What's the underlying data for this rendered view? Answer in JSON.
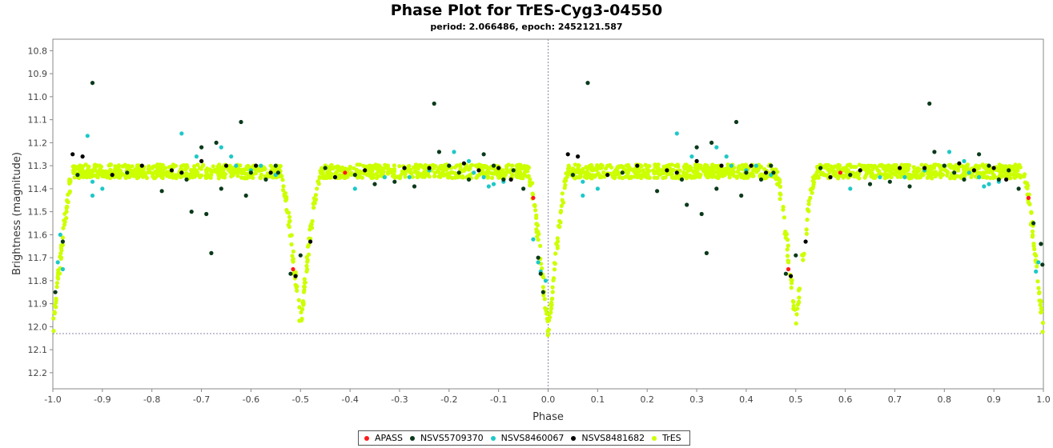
{
  "chart_data": {
    "type": "scatter",
    "title": "Phase Plot for TrES-Cyg3-04550",
    "subtitle": "period: 2.066486, epoch: 2452121.587",
    "xlabel": "Phase",
    "ylabel": "Brightness (magnitude)",
    "xlim": [
      -1.0,
      1.0
    ],
    "ylim": [
      10.75,
      12.27
    ],
    "y_inverted": true,
    "xticks": [
      "-1.0",
      "-0.9",
      "-0.8",
      "-0.7",
      "-0.6",
      "-0.5",
      "-0.4",
      "-0.3",
      "-0.2",
      "-0.1",
      "0.0",
      "0.1",
      "0.2",
      "0.3",
      "0.4",
      "0.5",
      "0.6",
      "0.7",
      "0.8",
      "0.9",
      "1.0"
    ],
    "yticks": [
      "10.8",
      "10.9",
      "11.0",
      "11.1",
      "11.2",
      "11.3",
      "11.4",
      "11.5",
      "11.6",
      "11.7",
      "11.8",
      "11.9",
      "12.0",
      "12.1",
      "12.2"
    ],
    "crosshair": {
      "x": 0.0,
      "y": 12.03
    },
    "legend_position": "bottom",
    "series": [
      {
        "name": "APASS",
        "color": "#ff1a1a",
        "points": [
          [
            -0.515,
            11.75
          ],
          [
            -0.41,
            11.33
          ],
          [
            -0.03,
            11.44
          ],
          [
            0.485,
            11.75
          ],
          [
            0.59,
            11.33
          ],
          [
            0.97,
            11.44
          ]
        ]
      },
      {
        "name": "NSVS5709370",
        "color": "#0a3a1a",
        "points": [
          [
            -0.92,
            10.94
          ],
          [
            -0.23,
            11.03
          ],
          [
            -0.62,
            11.11
          ],
          [
            -0.7,
            11.22
          ],
          [
            -0.67,
            11.2
          ],
          [
            -0.55,
            11.3
          ],
          [
            -0.95,
            11.34
          ],
          [
            -0.85,
            11.33
          ],
          [
            -0.78,
            11.41
          ],
          [
            -0.73,
            11.36
          ],
          [
            -0.72,
            11.5
          ],
          [
            -0.69,
            11.51
          ],
          [
            -0.68,
            11.68
          ],
          [
            -0.66,
            11.4
          ],
          [
            -0.61,
            11.43
          ],
          [
            -0.6,
            11.33
          ],
          [
            -0.57,
            11.36
          ],
          [
            -0.545,
            11.33
          ],
          [
            -0.5,
            11.69
          ],
          [
            -0.52,
            11.77
          ],
          [
            -0.98,
            11.63
          ],
          [
            -0.995,
            11.85
          ],
          [
            -0.45,
            11.31
          ],
          [
            -0.39,
            11.34
          ],
          [
            -0.35,
            11.38
          ],
          [
            -0.31,
            11.37
          ],
          [
            -0.27,
            11.39
          ],
          [
            -0.22,
            11.24
          ],
          [
            -0.2,
            11.3
          ],
          [
            -0.18,
            11.33
          ],
          [
            -0.16,
            11.36
          ],
          [
            -0.13,
            11.25
          ],
          [
            -0.11,
            11.3
          ],
          [
            -0.09,
            11.36
          ],
          [
            -0.07,
            11.32
          ],
          [
            -0.05,
            11.4
          ],
          [
            -0.02,
            11.7
          ],
          [
            -0.015,
            11.77
          ],
          [
            -0.01,
            11.85
          ],
          [
            0.08,
            10.94
          ],
          [
            0.77,
            11.03
          ],
          [
            0.38,
            11.11
          ],
          [
            0.3,
            11.22
          ],
          [
            0.33,
            11.2
          ],
          [
            0.45,
            11.3
          ],
          [
            0.05,
            11.34
          ],
          [
            0.15,
            11.33
          ],
          [
            0.22,
            11.41
          ],
          [
            0.27,
            11.36
          ],
          [
            0.28,
            11.47
          ],
          [
            0.31,
            11.51
          ],
          [
            0.32,
            11.68
          ],
          [
            0.34,
            11.4
          ],
          [
            0.39,
            11.43
          ],
          [
            0.4,
            11.33
          ],
          [
            0.43,
            11.36
          ],
          [
            0.455,
            11.33
          ],
          [
            0.5,
            11.69
          ],
          [
            0.48,
            11.77
          ],
          [
            0.55,
            11.31
          ],
          [
            0.61,
            11.34
          ],
          [
            0.65,
            11.38
          ],
          [
            0.69,
            11.37
          ],
          [
            0.73,
            11.39
          ],
          [
            0.78,
            11.24
          ],
          [
            0.8,
            11.3
          ],
          [
            0.82,
            11.33
          ],
          [
            0.84,
            11.36
          ],
          [
            0.87,
            11.25
          ],
          [
            0.89,
            11.3
          ],
          [
            0.91,
            11.36
          ],
          [
            0.93,
            11.32
          ],
          [
            0.95,
            11.4
          ],
          [
            0.98,
            11.55
          ],
          [
            0.995,
            11.64
          ],
          [
            0.998,
            11.73
          ]
        ]
      },
      {
        "name": "NSVS8460067",
        "color": "#1ec8c8",
        "points": [
          [
            -0.93,
            11.17
          ],
          [
            -0.92,
            11.37
          ],
          [
            -0.92,
            11.43
          ],
          [
            -0.9,
            11.4
          ],
          [
            -0.74,
            11.16
          ],
          [
            -0.71,
            11.26
          ],
          [
            -0.66,
            11.22
          ],
          [
            -0.64,
            11.26
          ],
          [
            -0.63,
            11.3
          ],
          [
            -0.6,
            11.32
          ],
          [
            -0.58,
            11.3
          ],
          [
            -0.55,
            11.34
          ],
          [
            -0.985,
            11.6
          ],
          [
            -0.99,
            11.72
          ],
          [
            -0.98,
            11.75
          ],
          [
            -0.39,
            11.4
          ],
          [
            -0.33,
            11.35
          ],
          [
            -0.28,
            11.35
          ],
          [
            -0.24,
            11.32
          ],
          [
            -0.2,
            11.3
          ],
          [
            -0.19,
            11.24
          ],
          [
            -0.16,
            11.28
          ],
          [
            -0.15,
            11.33
          ],
          [
            -0.13,
            11.35
          ],
          [
            -0.12,
            11.39
          ],
          [
            -0.11,
            11.38
          ],
          [
            -0.09,
            11.37
          ],
          [
            -0.03,
            11.62
          ],
          [
            -0.02,
            11.72
          ],
          [
            -0.015,
            11.76
          ],
          [
            -0.005,
            11.8
          ],
          [
            0.07,
            11.37
          ],
          [
            0.07,
            11.43
          ],
          [
            0.1,
            11.4
          ],
          [
            0.26,
            11.16
          ],
          [
            0.29,
            11.26
          ],
          [
            0.34,
            11.22
          ],
          [
            0.36,
            11.26
          ],
          [
            0.37,
            11.3
          ],
          [
            0.4,
            11.32
          ],
          [
            0.42,
            11.3
          ],
          [
            0.45,
            11.34
          ],
          [
            0.61,
            11.4
          ],
          [
            0.67,
            11.35
          ],
          [
            0.72,
            11.35
          ],
          [
            0.76,
            11.32
          ],
          [
            0.8,
            11.3
          ],
          [
            0.81,
            11.24
          ],
          [
            0.84,
            11.28
          ],
          [
            0.85,
            11.33
          ],
          [
            0.87,
            11.35
          ],
          [
            0.88,
            11.39
          ],
          [
            0.89,
            11.38
          ],
          [
            0.91,
            11.37
          ],
          [
            0.99,
            11.72
          ],
          [
            0.985,
            11.76
          ]
        ]
      },
      {
        "name": "NSVS8481682",
        "color": "#000000",
        "points": [
          [
            -0.96,
            11.25
          ],
          [
            -0.94,
            11.26
          ],
          [
            -0.88,
            11.34
          ],
          [
            -0.82,
            11.3
          ],
          [
            -0.76,
            11.32
          ],
          [
            -0.74,
            11.33
          ],
          [
            -0.7,
            11.28
          ],
          [
            -0.65,
            11.3
          ],
          [
            -0.59,
            11.3
          ],
          [
            -0.56,
            11.33
          ],
          [
            -0.51,
            11.78
          ],
          [
            -0.48,
            11.63
          ],
          [
            -0.43,
            11.35
          ],
          [
            -0.37,
            11.32
          ],
          [
            -0.29,
            11.31
          ],
          [
            -0.24,
            11.31
          ],
          [
            -0.17,
            11.29
          ],
          [
            -0.14,
            11.32
          ],
          [
            -0.1,
            11.31
          ],
          [
            -0.075,
            11.36
          ],
          [
            0.04,
            11.25
          ],
          [
            0.06,
            11.26
          ],
          [
            0.12,
            11.34
          ],
          [
            0.18,
            11.3
          ],
          [
            0.24,
            11.32
          ],
          [
            0.26,
            11.33
          ],
          [
            0.3,
            11.28
          ],
          [
            0.35,
            11.3
          ],
          [
            0.41,
            11.3
          ],
          [
            0.44,
            11.33
          ],
          [
            0.49,
            11.78
          ],
          [
            0.52,
            11.63
          ],
          [
            0.57,
            11.35
          ],
          [
            0.63,
            11.32
          ],
          [
            0.71,
            11.31
          ],
          [
            0.76,
            11.31
          ],
          [
            0.83,
            11.29
          ],
          [
            0.86,
            11.32
          ],
          [
            0.9,
            11.31
          ],
          [
            0.925,
            11.36
          ]
        ]
      },
      {
        "name": "TrES",
        "color": "#ccff00",
        "shape": {
          "baseline": 11.325,
          "spread": 0.03,
          "dips": [
            {
              "center": -1.0,
              "depth": 12.03,
              "halfwidth": 0.04
            },
            {
              "center": -0.5,
              "depth": 11.99,
              "halfwidth": 0.04
            },
            {
              "center": 0.0,
              "depth": 12.03,
              "halfwidth": 0.04
            },
            {
              "center": 0.5,
              "depth": 11.99,
              "halfwidth": 0.04
            },
            {
              "center": 1.0,
              "depth": 12.03,
              "halfwidth": 0.04
            }
          ]
        }
      }
    ]
  }
}
